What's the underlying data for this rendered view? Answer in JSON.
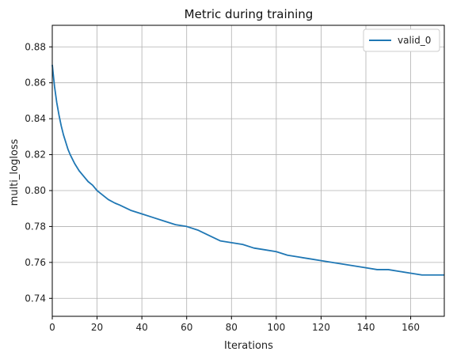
{
  "chart_data": {
    "type": "line",
    "title": "Metric during training",
    "xlabel": "Iterations",
    "ylabel": "multi_logloss",
    "xlim": [
      0,
      175
    ],
    "ylim": [
      0.73,
      0.892
    ],
    "xticks": [
      0,
      20,
      40,
      60,
      80,
      100,
      120,
      140,
      160
    ],
    "yticks": [
      0.74,
      0.76,
      0.78,
      0.8,
      0.82,
      0.84,
      0.86,
      0.88
    ],
    "xtick_labels": [
      "0",
      "20",
      "40",
      "60",
      "80",
      "100",
      "120",
      "140",
      "160"
    ],
    "ytick_labels": [
      "0.74",
      "0.76",
      "0.78",
      "0.80",
      "0.82",
      "0.84",
      "0.86",
      "0.88"
    ],
    "grid": true,
    "legend_position": "top-right",
    "series": [
      {
        "name": "valid_0",
        "color": "#1f77b4",
        "x": [
          0,
          1,
          2,
          3,
          4,
          5,
          6,
          7,
          8,
          10,
          12,
          14,
          16,
          18,
          20,
          22,
          25,
          28,
          30,
          35,
          40,
          45,
          50,
          55,
          60,
          65,
          70,
          75,
          80,
          85,
          90,
          95,
          100,
          105,
          110,
          115,
          120,
          125,
          130,
          135,
          140,
          145,
          150,
          155,
          160,
          165,
          170,
          175
        ],
        "values": [
          0.87,
          0.858,
          0.849,
          0.842,
          0.836,
          0.831,
          0.827,
          0.823,
          0.82,
          0.815,
          0.811,
          0.808,
          0.805,
          0.803,
          0.8,
          0.798,
          0.795,
          0.793,
          0.792,
          0.789,
          0.787,
          0.785,
          0.783,
          0.781,
          0.78,
          0.778,
          0.775,
          0.772,
          0.771,
          0.77,
          0.768,
          0.767,
          0.766,
          0.764,
          0.763,
          0.762,
          0.761,
          0.76,
          0.759,
          0.758,
          0.757,
          0.756,
          0.756,
          0.755,
          0.754,
          0.753,
          0.753,
          0.753
        ]
      }
    ]
  }
}
